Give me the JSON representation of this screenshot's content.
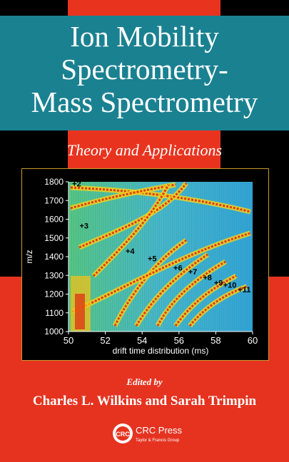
{
  "cover": {
    "title_lines": [
      "Ion Mobility",
      "Spectrometry-",
      "Mass Spectrometry"
    ],
    "subtitle": "Theory and Applications",
    "edited_by": "Edited by",
    "editors": "Charles L. Wilkins and Sarah Trimpin",
    "publisher_name": "CRC Press",
    "publisher_sub": "Taylor & Francis Group",
    "logo_text": "CRC",
    "colors": {
      "teal": "#1a8191",
      "red": "#e8341f",
      "black": "#000000",
      "frame": "#c89a2a"
    }
  },
  "chart_data": {
    "type": "heatmap",
    "xlabel": "drift time distribution (ms)",
    "ylabel": "m/z",
    "xlim": [
      50,
      60
    ],
    "ylim": [
      1000,
      1800
    ],
    "x_ticks": [
      "50",
      "52",
      "54",
      "56",
      "58",
      "60"
    ],
    "y_ticks": [
      "1000",
      "1100",
      "1200",
      "1300",
      "1400",
      "1500",
      "1600",
      "1700",
      "1800"
    ],
    "annotations": [
      {
        "label": "+2",
        "x": 50.2,
        "y": 1775
      },
      {
        "label": "+3",
        "x": 50.6,
        "y": 1550
      },
      {
        "label": "+4",
        "x": 53.1,
        "y": 1415
      },
      {
        "label": "+5",
        "x": 54.3,
        "y": 1375
      },
      {
        "label": "+6",
        "x": 55.7,
        "y": 1325
      },
      {
        "label": "+7",
        "x": 56.5,
        "y": 1305
      },
      {
        "label": "+8",
        "x": 57.3,
        "y": 1275
      },
      {
        "label": "+9",
        "x": 57.9,
        "y": 1245
      },
      {
        "label": "+10",
        "x": 58.4,
        "y": 1235
      },
      {
        "label": "+11",
        "x": 59.2,
        "y": 1210
      }
    ]
  }
}
